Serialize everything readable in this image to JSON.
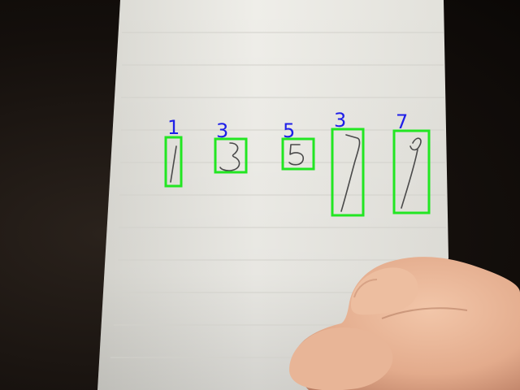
{
  "detections": [
    {
      "label": "1"
    },
    {
      "label": "3"
    },
    {
      "label": "5"
    },
    {
      "label": "3"
    },
    {
      "label": "7"
    }
  ],
  "colors": {
    "box": "#22e622",
    "label": "#1f1fe8",
    "ink": "#4a4a4a",
    "paper": "#ecebe6"
  }
}
